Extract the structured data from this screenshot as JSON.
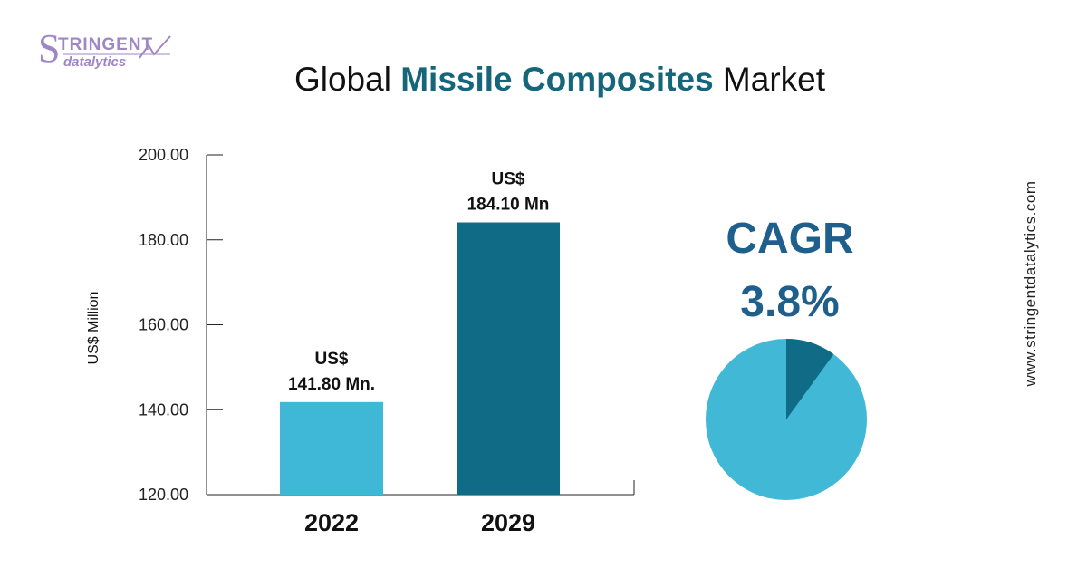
{
  "logo": {
    "initial": "S",
    "top_text": "TRINGENT",
    "bottom_text": "datalytics"
  },
  "title": {
    "prefix": "Global ",
    "highlight": "Missile Composites",
    "suffix": " Market"
  },
  "cagr": {
    "label": "CAGR",
    "value": "3.8%"
  },
  "website": "www.stringentdatalytics.com",
  "colors": {
    "bar_2022": "#3fb8d7",
    "bar_2029": "#0f6b86",
    "accent": "#15667b",
    "cagr_text": "#1f5f8b",
    "pie_main": "#40b8d6",
    "pie_slice": "#0f6b86"
  },
  "chart_data": {
    "type": "bar",
    "categories": [
      "2022",
      "2029"
    ],
    "values": [
      141.8,
      184.1
    ],
    "value_labels": [
      [
        "US$",
        "141.80 Mn."
      ],
      [
        "US$",
        "184.10 Mn"
      ]
    ],
    "ylabel": "US$ Million",
    "ylim": [
      120,
      200
    ],
    "yticks": [
      "120.00",
      "140.00",
      "160.00",
      "180.00",
      "200.00"
    ],
    "grid": false,
    "pie": {
      "value_percent": 3.8,
      "slice_fraction": 0.1
    }
  }
}
